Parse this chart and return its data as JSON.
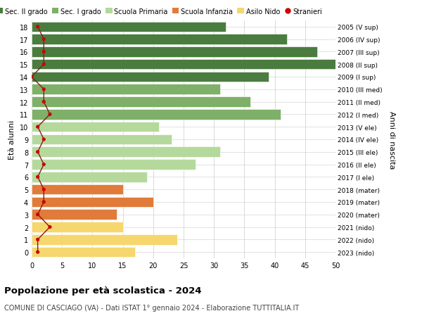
{
  "ages": [
    18,
    17,
    16,
    15,
    14,
    13,
    12,
    11,
    10,
    9,
    8,
    7,
    6,
    5,
    4,
    3,
    2,
    1,
    0
  ],
  "right_labels": [
    "2005 (V sup)",
    "2006 (IV sup)",
    "2007 (III sup)",
    "2008 (II sup)",
    "2009 (I sup)",
    "2010 (III med)",
    "2011 (II med)",
    "2012 (I med)",
    "2013 (V ele)",
    "2014 (IV ele)",
    "2015 (III ele)",
    "2016 (II ele)",
    "2017 (I ele)",
    "2018 (mater)",
    "2019 (mater)",
    "2020 (mater)",
    "2021 (nido)",
    "2022 (nido)",
    "2023 (nido)"
  ],
  "bar_values": [
    32,
    42,
    47,
    50,
    39,
    31,
    36,
    41,
    21,
    23,
    31,
    27,
    19,
    15,
    20,
    14,
    15,
    24,
    17
  ],
  "bar_colors": [
    "#4a7c3f",
    "#4a7c3f",
    "#4a7c3f",
    "#4a7c3f",
    "#4a7c3f",
    "#7fb069",
    "#7fb069",
    "#7fb069",
    "#b5d99c",
    "#b5d99c",
    "#b5d99c",
    "#b5d99c",
    "#b5d99c",
    "#e07b39",
    "#e07b39",
    "#e07b39",
    "#f5d76e",
    "#f5d76e",
    "#f5d76e"
  ],
  "stranieri_values": [
    1,
    2,
    2,
    2,
    0,
    2,
    2,
    3,
    1,
    2,
    1,
    2,
    1,
    2,
    2,
    1,
    3,
    1,
    1
  ],
  "legend_labels": [
    "Sec. II grado",
    "Sec. I grado",
    "Scuola Primaria",
    "Scuola Infanzia",
    "Asilo Nido",
    "Stranieri"
  ],
  "legend_colors": [
    "#4a7c3f",
    "#7fb069",
    "#b5d99c",
    "#e07b39",
    "#f5d76e",
    "#cc0000"
  ],
  "ylabel": "Età alunni",
  "ylabel_right": "Anni di nascita",
  "title": "Popolazione per età scolastica - 2024",
  "subtitle": "COMUNE DI CASCIAGO (VA) - Dati ISTAT 1° gennaio 2024 - Elaborazione TUTTITALIA.IT",
  "xlim": [
    0,
    50
  ],
  "xticks": [
    0,
    5,
    10,
    15,
    20,
    25,
    30,
    35,
    40,
    45,
    50
  ],
  "background_color": "#ffffff",
  "grid_color": "#cccccc",
  "stranieri_line_color": "#8b1a1a",
  "stranieri_dot_color": "#cc0000"
}
